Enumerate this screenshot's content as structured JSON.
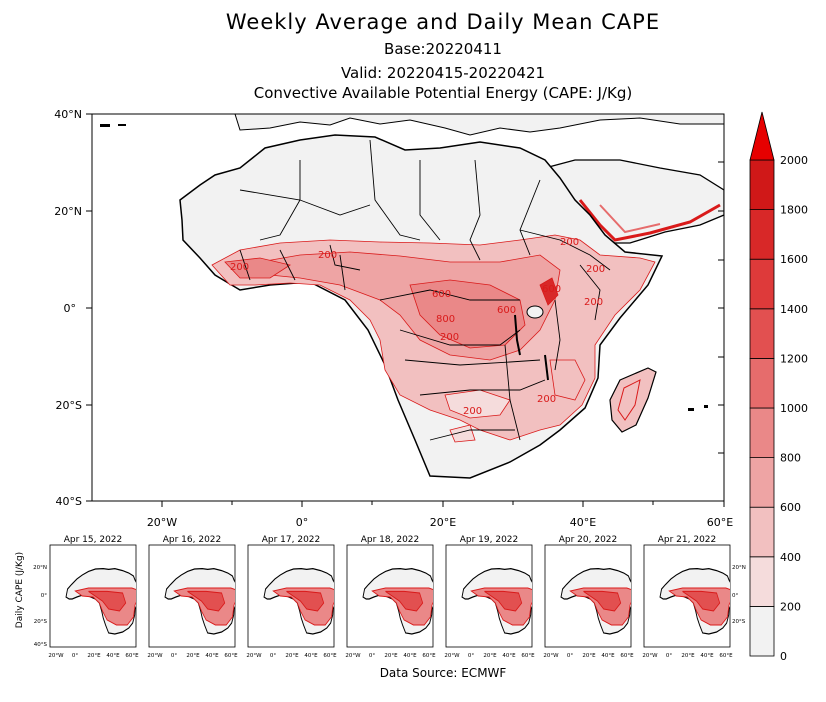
{
  "header": {
    "title": "Weekly Average and Daily Mean CAPE",
    "base": "Base:20220411",
    "valid": "Valid: 20220415-20220421",
    "subtitle": "Convective Available Potential Energy (CAPE: J/Kg)"
  },
  "main_map": {
    "lat_ticks": [
      "40°N",
      "20°N",
      "0°",
      "20°S",
      "40°S"
    ],
    "lon_ticks": [
      "20°W",
      "0°",
      "20°E",
      "40°E",
      "60°E"
    ],
    "contour_labels": [
      "200",
      "200",
      "600",
      "800",
      "600",
      "200",
      "200",
      "200",
      "600",
      "200",
      "200",
      "200"
    ]
  },
  "colorbar": {
    "levels": [
      "0",
      "200",
      "400",
      "600",
      "800",
      "1000",
      "1200",
      "1400",
      "1600",
      "1800",
      "2000"
    ],
    "colors": [
      "#f2f2f2",
      "#f5dcdc",
      "#f2c0c0",
      "#eea4a4",
      "#ea8888",
      "#e66c6c",
      "#e25050",
      "#de3a3a",
      "#d82828",
      "#d01818",
      "#e60000"
    ]
  },
  "daily_panels": {
    "ylabel": "Daily CAPE (J/Kg)",
    "lat_ticks": [
      "20°N",
      "0°",
      "20°S",
      "40°S"
    ],
    "lon_ticks": [
      "20°W",
      "0°",
      "20°E",
      "40°E",
      "60°E"
    ],
    "dates": [
      "Apr 15, 2022",
      "Apr 16, 2022",
      "Apr 17, 2022",
      "Apr 18, 2022",
      "Apr 19, 2022",
      "Apr 20, 2022",
      "Apr 21, 2022"
    ]
  },
  "footer": {
    "source": "Data Source: ECMWF"
  }
}
